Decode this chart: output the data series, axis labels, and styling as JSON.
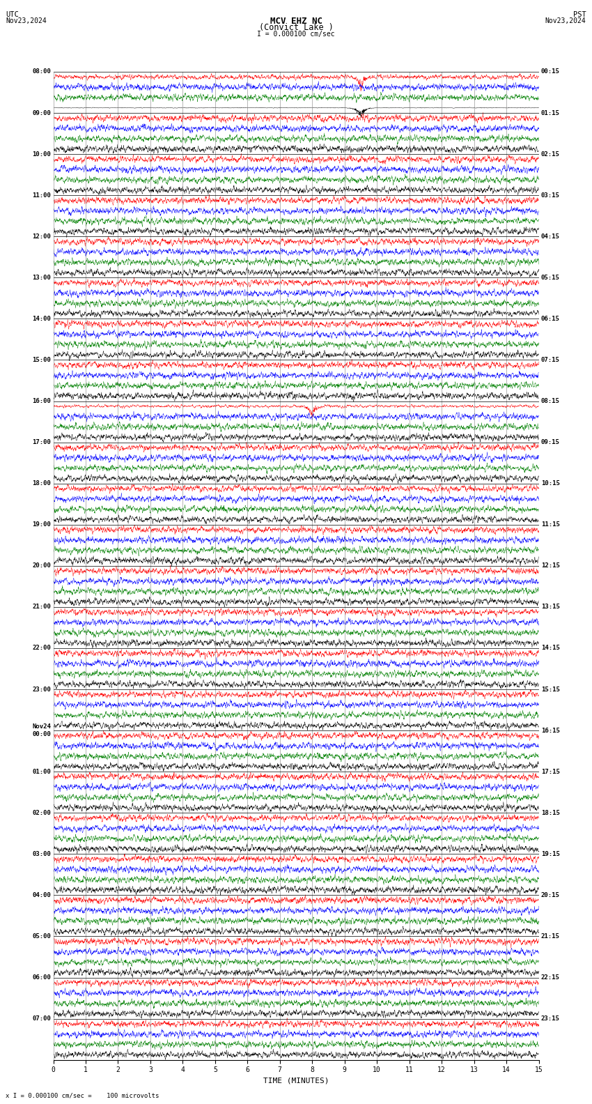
{
  "title_line1": "MCV EHZ NC",
  "title_line2": "(Convict Lake )",
  "scale_label": "I = 0.000100 cm/sec",
  "utc_label": "UTC",
  "utc_date": "Nov23,2024",
  "pst_label": "PST",
  "pst_date": "Nov23,2024",
  "xlabel": "TIME (MINUTES)",
  "footer": "x I = 0.000100 cm/sec =    100 microvolts",
  "bgcolor": "#ffffff",
  "trace_colors": [
    "#ff0000",
    "#0000ff",
    "#008000",
    "#000000"
  ],
  "left_times": [
    "08:00",
    "09:00",
    "10:00",
    "11:00",
    "12:00",
    "13:00",
    "14:00",
    "15:00",
    "16:00",
    "17:00",
    "18:00",
    "19:00",
    "20:00",
    "21:00",
    "22:00",
    "23:00",
    "Nov24\n00:00",
    "01:00",
    "02:00",
    "03:00",
    "04:00",
    "05:00",
    "06:00",
    "07:00"
  ],
  "right_times": [
    "00:15",
    "01:15",
    "02:15",
    "03:15",
    "04:15",
    "05:15",
    "06:15",
    "07:15",
    "08:15",
    "09:15",
    "10:15",
    "11:15",
    "12:15",
    "13:15",
    "14:15",
    "15:15",
    "16:15",
    "17:15",
    "18:15",
    "19:15",
    "20:15",
    "21:15",
    "22:15",
    "23:15"
  ],
  "n_rows": 24,
  "traces_per_row": 4,
  "minutes": 15,
  "noise_seed": 42
}
